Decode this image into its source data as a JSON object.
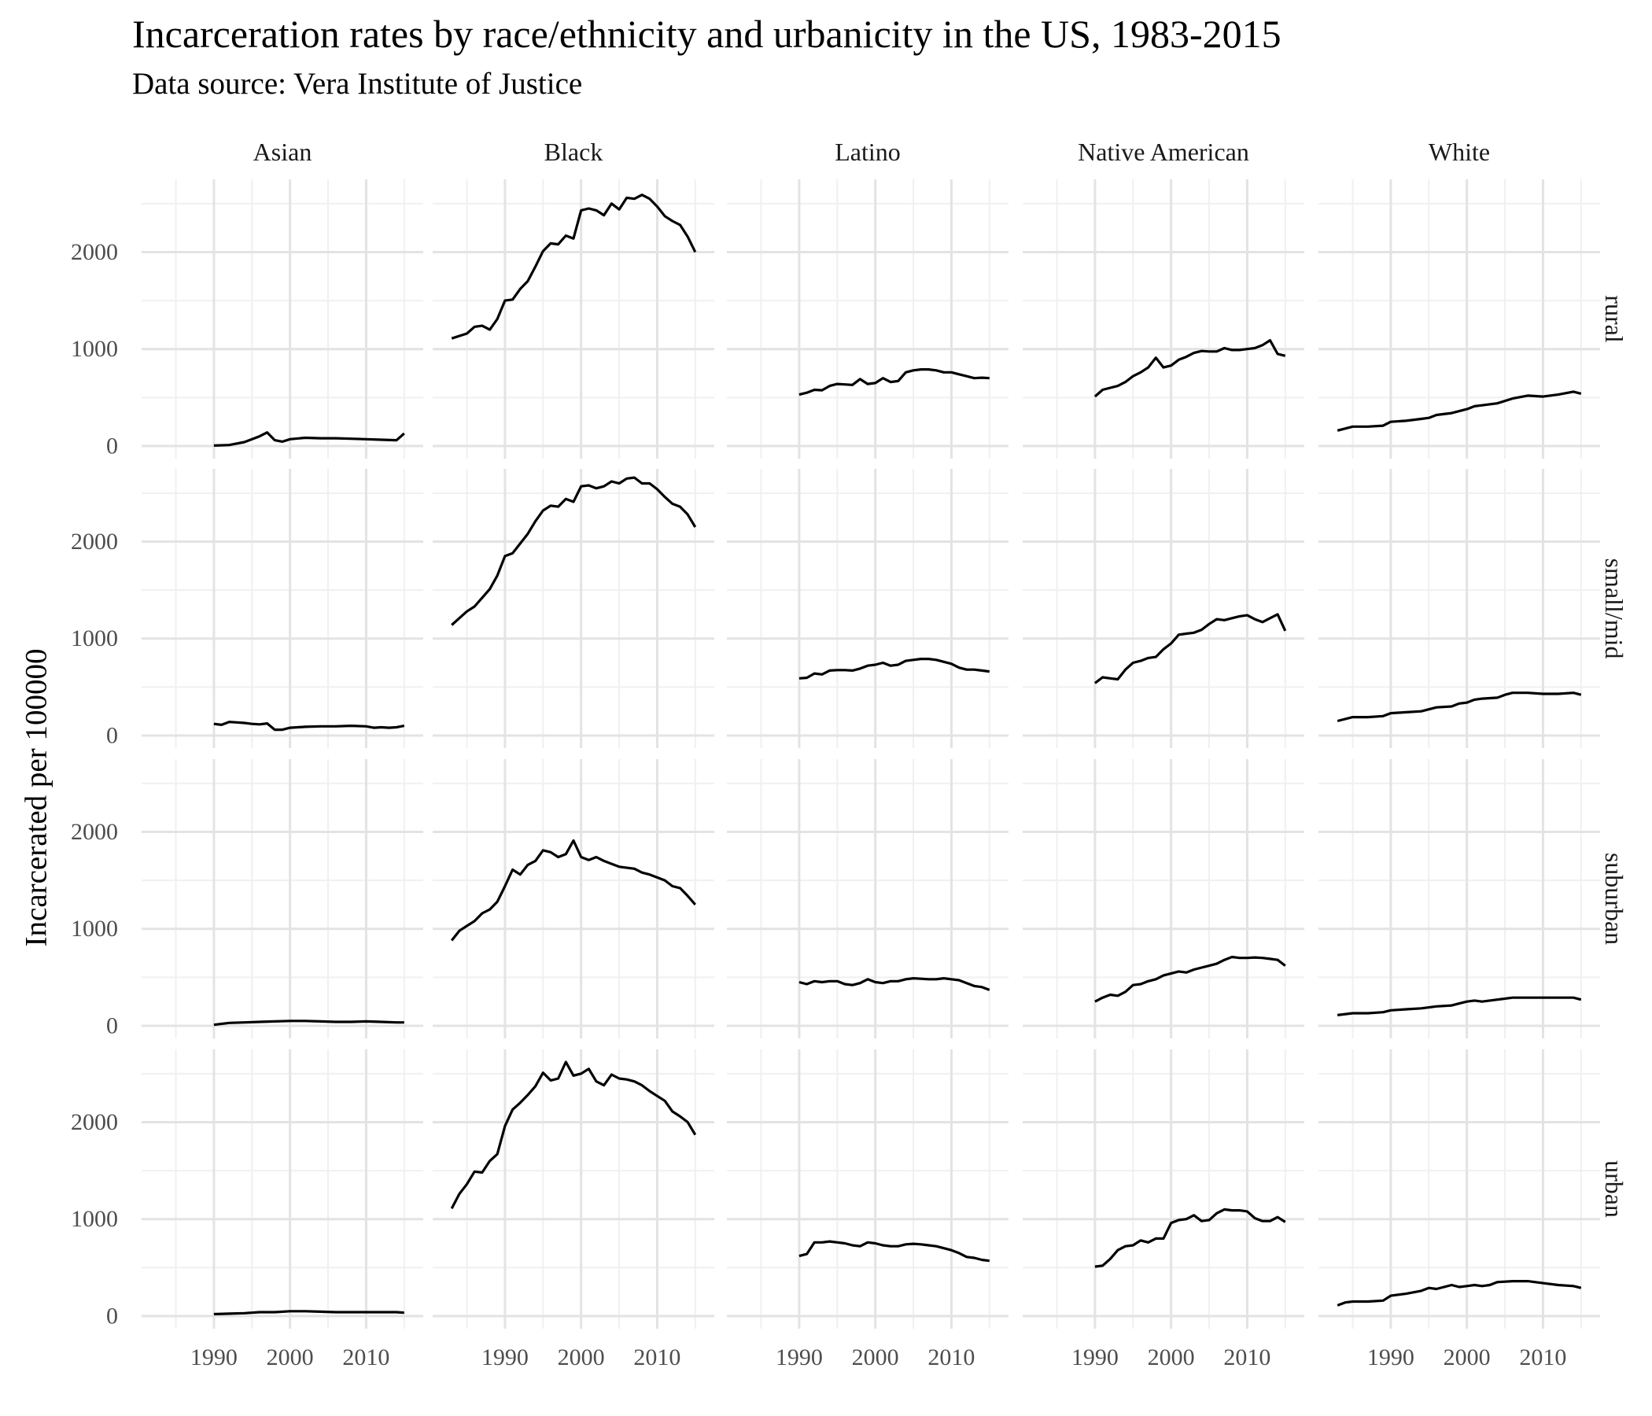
{
  "chart_data": {
    "type": "line",
    "title": "Incarceration rates by race/ethnicity and urbanicity in the US, 1983-2015",
    "subtitle": "Data source: Vera Institute of Justice",
    "ylabel": "Incarcerated per 100000",
    "xlabel": "",
    "columns": [
      "Asian",
      "Black",
      "Latino",
      "Native American",
      "White"
    ],
    "rows": [
      "rural",
      "small/mid",
      "suburban",
      "urban"
    ],
    "x_ticks": [
      1990,
      2000,
      2010
    ],
    "y_ticks": [
      0,
      1000,
      2000
    ],
    "xlim": [
      1980.5,
      2017.5
    ],
    "ylim": [
      -130,
      2750
    ],
    "grid": true,
    "legend": "none",
    "panels": {
      "rural": {
        "Asian": {
          "x": [
            1990,
            1992,
            1994,
            1996,
            1997,
            1998,
            1999,
            2000,
            2002,
            2004,
            2006,
            2008,
            2010,
            2012,
            2014,
            2015
          ],
          "y": [
            5,
            10,
            40,
            100,
            140,
            60,
            45,
            70,
            85,
            80,
            80,
            75,
            70,
            65,
            60,
            130
          ]
        },
        "Black": {
          "x": [
            1983,
            1985,
            1986,
            1987,
            1988,
            1989,
            1990,
            1991,
            1992,
            1993,
            1994,
            1995,
            1996,
            1997,
            1998,
            1999,
            2000,
            2001,
            2002,
            2003,
            2004,
            2005,
            2006,
            2007,
            2008,
            2009,
            2010,
            2011,
            2012,
            2013,
            2014,
            2015
          ],
          "y": [
            1110,
            1160,
            1230,
            1240,
            1200,
            1310,
            1500,
            1510,
            1620,
            1700,
            1850,
            2010,
            2090,
            2080,
            2170,
            2140,
            2430,
            2450,
            2430,
            2380,
            2500,
            2440,
            2560,
            2550,
            2590,
            2550,
            2470,
            2370,
            2320,
            2280,
            2160,
            2000
          ]
        },
        "Latino": {
          "x": [
            1990,
            1991,
            1992,
            1993,
            1994,
            1995,
            1996,
            1997,
            1998,
            1999,
            2000,
            2001,
            2002,
            2003,
            2004,
            2005,
            2006,
            2007,
            2008,
            2009,
            2010,
            2011,
            2012,
            2013,
            2014,
            2015
          ],
          "y": [
            530,
            550,
            580,
            575,
            620,
            640,
            635,
            630,
            690,
            640,
            650,
            700,
            660,
            670,
            760,
            780,
            790,
            790,
            780,
            760,
            760,
            740,
            720,
            700,
            705,
            700
          ]
        },
        "Native American": {
          "x": [
            1990,
            1991,
            1992,
            1993,
            1994,
            1995,
            1996,
            1997,
            1998,
            1999,
            2000,
            2001,
            2002,
            2003,
            2004,
            2005,
            2006,
            2007,
            2008,
            2009,
            2010,
            2011,
            2012,
            2013,
            2014,
            2015
          ],
          "y": [
            510,
            580,
            600,
            620,
            660,
            720,
            760,
            810,
            910,
            810,
            830,
            890,
            920,
            960,
            980,
            975,
            975,
            1010,
            990,
            990,
            1000,
            1010,
            1040,
            1090,
            950,
            930
          ]
        },
        "White": {
          "x": [
            1983,
            1985,
            1987,
            1989,
            1990,
            1992,
            1994,
            1995,
            1996,
            1998,
            2000,
            2001,
            2002,
            2004,
            2006,
            2008,
            2010,
            2012,
            2014,
            2015
          ],
          "y": [
            160,
            200,
            200,
            210,
            250,
            260,
            280,
            290,
            320,
            340,
            380,
            410,
            420,
            440,
            490,
            520,
            510,
            530,
            560,
            540
          ]
        }
      },
      "small/mid": {
        "Asian": {
          "x": [
            1990,
            1991,
            1992,
            1993,
            1994,
            1995,
            1996,
            1997,
            1998,
            1999,
            2000,
            2001,
            2002,
            2004,
            2006,
            2008,
            2010,
            2011,
            2012,
            2013,
            2014,
            2015
          ],
          "y": [
            120,
            110,
            140,
            135,
            130,
            120,
            115,
            125,
            60,
            60,
            80,
            85,
            90,
            95,
            95,
            100,
            95,
            80,
            85,
            80,
            85,
            100
          ]
        },
        "Black": {
          "x": [
            1983,
            1984,
            1985,
            1986,
            1987,
            1988,
            1989,
            1990,
            1991,
            1992,
            1993,
            1994,
            1995,
            1996,
            1997,
            1998,
            1999,
            2000,
            2001,
            2002,
            2003,
            2004,
            2005,
            2006,
            2007,
            2008,
            2009,
            2010,
            2011,
            2012,
            2013,
            2014,
            2015
          ],
          "y": [
            1140,
            1210,
            1280,
            1330,
            1420,
            1510,
            1650,
            1850,
            1880,
            1980,
            2080,
            2210,
            2320,
            2370,
            2360,
            2440,
            2410,
            2570,
            2580,
            2550,
            2570,
            2620,
            2600,
            2650,
            2660,
            2600,
            2600,
            2540,
            2460,
            2390,
            2360,
            2280,
            2150
          ]
        },
        "Latino": {
          "x": [
            1990,
            1991,
            1992,
            1993,
            1994,
            1995,
            1996,
            1997,
            1998,
            1999,
            2000,
            2001,
            2002,
            2003,
            2004,
            2005,
            2006,
            2007,
            2008,
            2009,
            2010,
            2011,
            2012,
            2013,
            2014,
            2015
          ],
          "y": [
            590,
            595,
            640,
            630,
            670,
            675,
            675,
            670,
            690,
            720,
            730,
            750,
            720,
            730,
            770,
            780,
            790,
            790,
            780,
            760,
            740,
            700,
            680,
            680,
            670,
            660
          ]
        },
        "Native American": {
          "x": [
            1990,
            1991,
            1992,
            1993,
            1994,
            1995,
            1996,
            1997,
            1998,
            1999,
            2000,
            2001,
            2002,
            2003,
            2004,
            2005,
            2006,
            2007,
            2008,
            2009,
            2010,
            2011,
            2012,
            2013,
            2014,
            2015
          ],
          "y": [
            540,
            600,
            590,
            580,
            680,
            750,
            770,
            800,
            810,
            890,
            950,
            1040,
            1050,
            1060,
            1090,
            1150,
            1200,
            1190,
            1210,
            1230,
            1240,
            1200,
            1170,
            1210,
            1250,
            1080
          ]
        },
        "White": {
          "x": [
            1983,
            1985,
            1987,
            1989,
            1990,
            1992,
            1994,
            1996,
            1998,
            1999,
            2000,
            2001,
            2002,
            2004,
            2005,
            2006,
            2008,
            2010,
            2012,
            2014,
            2015
          ],
          "y": [
            150,
            190,
            190,
            200,
            230,
            240,
            250,
            290,
            300,
            330,
            340,
            370,
            380,
            390,
            420,
            440,
            440,
            430,
            430,
            440,
            420
          ]
        }
      },
      "suburban": {
        "Asian": {
          "x": [
            1990,
            1992,
            1994,
            1996,
            1998,
            2000,
            2002,
            2004,
            2006,
            2008,
            2010,
            2012,
            2014,
            2015
          ],
          "y": [
            10,
            30,
            35,
            40,
            45,
            50,
            50,
            45,
            40,
            40,
            45,
            40,
            35,
            35
          ]
        },
        "Black": {
          "x": [
            1983,
            1984,
            1985,
            1986,
            1987,
            1988,
            1989,
            1990,
            1991,
            1992,
            1993,
            1994,
            1995,
            1996,
            1997,
            1998,
            1999,
            2000,
            2001,
            2002,
            2003,
            2004,
            2005,
            2006,
            2007,
            2008,
            2009,
            2010,
            2011,
            2012,
            2013,
            2014,
            2015
          ],
          "y": [
            880,
            980,
            1030,
            1080,
            1160,
            1200,
            1280,
            1440,
            1610,
            1560,
            1660,
            1700,
            1810,
            1790,
            1740,
            1770,
            1910,
            1740,
            1710,
            1740,
            1700,
            1670,
            1640,
            1630,
            1620,
            1580,
            1560,
            1530,
            1500,
            1440,
            1420,
            1340,
            1250
          ]
        },
        "Latino": {
          "x": [
            1990,
            1991,
            1992,
            1993,
            1994,
            1995,
            1996,
            1997,
            1998,
            1999,
            2000,
            2001,
            2002,
            2003,
            2004,
            2005,
            2006,
            2007,
            2008,
            2009,
            2010,
            2011,
            2012,
            2013,
            2014,
            2015
          ],
          "y": [
            450,
            430,
            460,
            450,
            460,
            460,
            430,
            420,
            440,
            480,
            450,
            440,
            460,
            460,
            480,
            490,
            485,
            480,
            480,
            490,
            480,
            470,
            440,
            410,
            400,
            370
          ]
        },
        "Native American": {
          "x": [
            1990,
            1991,
            1992,
            1993,
            1994,
            1995,
            1996,
            1997,
            1998,
            1999,
            2000,
            2001,
            2002,
            2003,
            2004,
            2005,
            2006,
            2007,
            2008,
            2009,
            2010,
            2011,
            2012,
            2013,
            2014,
            2015
          ],
          "y": [
            250,
            290,
            320,
            310,
            350,
            420,
            430,
            460,
            480,
            520,
            540,
            560,
            550,
            580,
            600,
            620,
            640,
            680,
            710,
            700,
            700,
            705,
            700,
            690,
            680,
            620
          ]
        },
        "White": {
          "x": [
            1983,
            1985,
            1987,
            1989,
            1990,
            1992,
            1994,
            1996,
            1998,
            1999,
            2000,
            2001,
            2002,
            2004,
            2006,
            2008,
            2010,
            2012,
            2014,
            2015
          ],
          "y": [
            110,
            130,
            130,
            140,
            160,
            170,
            180,
            200,
            210,
            230,
            250,
            260,
            250,
            270,
            290,
            290,
            290,
            290,
            290,
            270
          ]
        }
      },
      "urban": {
        "Asian": {
          "x": [
            1990,
            1992,
            1994,
            1996,
            1998,
            2000,
            2002,
            2004,
            2006,
            2008,
            2010,
            2012,
            2014,
            2015
          ],
          "y": [
            20,
            25,
            30,
            40,
            40,
            50,
            50,
            45,
            40,
            40,
            40,
            40,
            40,
            35
          ]
        },
        "Black": {
          "x": [
            1983,
            1984,
            1985,
            1986,
            1987,
            1988,
            1989,
            1990,
            1991,
            1992,
            1993,
            1994,
            1995,
            1996,
            1997,
            1998,
            1999,
            2000,
            2001,
            2002,
            2003,
            2004,
            2005,
            2006,
            2007,
            2008,
            2009,
            2010,
            2011,
            2012,
            2013,
            2014,
            2015
          ],
          "y": [
            1110,
            1260,
            1360,
            1490,
            1480,
            1600,
            1670,
            1960,
            2130,
            2200,
            2280,
            2370,
            2510,
            2430,
            2450,
            2620,
            2480,
            2500,
            2550,
            2420,
            2380,
            2490,
            2450,
            2440,
            2420,
            2380,
            2320,
            2270,
            2220,
            2110,
            2060,
            2000,
            1870
          ]
        },
        "Latino": {
          "x": [
            1990,
            1991,
            1992,
            1993,
            1994,
            1995,
            1996,
            1997,
            1998,
            1999,
            2000,
            2001,
            2002,
            2003,
            2004,
            2005,
            2006,
            2007,
            2008,
            2009,
            2010,
            2011,
            2012,
            2013,
            2014,
            2015
          ],
          "y": [
            620,
            640,
            760,
            760,
            770,
            760,
            750,
            730,
            720,
            760,
            750,
            730,
            720,
            720,
            740,
            745,
            740,
            730,
            720,
            700,
            680,
            650,
            610,
            600,
            580,
            570
          ]
        },
        "Native American": {
          "x": [
            1990,
            1991,
            1992,
            1993,
            1994,
            1995,
            1996,
            1997,
            1998,
            1999,
            2000,
            2001,
            2002,
            2003,
            2004,
            2005,
            2006,
            2007,
            2008,
            2009,
            2010,
            2011,
            2012,
            2013,
            2014,
            2015
          ],
          "y": [
            510,
            520,
            590,
            680,
            720,
            730,
            780,
            760,
            800,
            800,
            960,
            990,
            1000,
            1040,
            980,
            990,
            1060,
            1100,
            1090,
            1090,
            1080,
            1010,
            980,
            980,
            1020,
            970
          ]
        },
        "White": {
          "x": [
            1983,
            1984,
            1985,
            1987,
            1989,
            1990,
            1992,
            1994,
            1995,
            1996,
            1998,
            1999,
            2000,
            2001,
            2002,
            2003,
            2004,
            2006,
            2008,
            2010,
            2012,
            2014,
            2015
          ],
          "y": [
            110,
            140,
            150,
            150,
            160,
            210,
            230,
            260,
            290,
            280,
            320,
            300,
            310,
            320,
            310,
            320,
            350,
            360,
            360,
            340,
            320,
            310,
            290
          ]
        }
      }
    }
  }
}
